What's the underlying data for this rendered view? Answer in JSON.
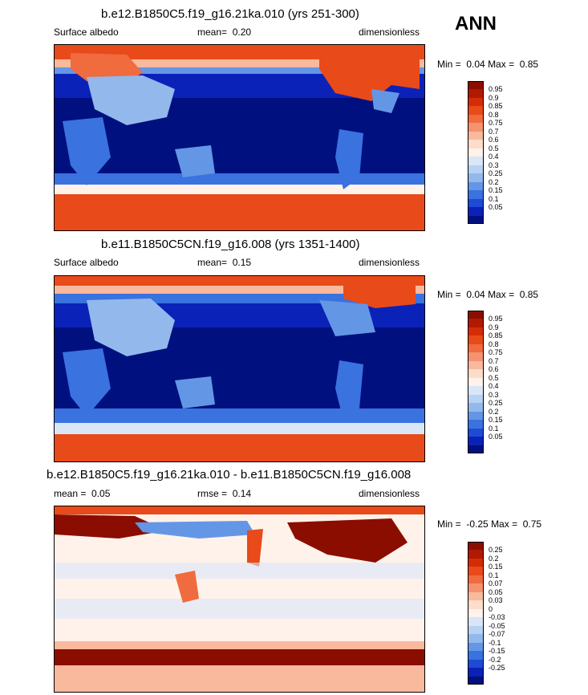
{
  "season": "ANN",
  "chart_data": [
    {
      "type": "heatmap",
      "title": "b.e12.B1850C5.f19_g16.21ka.010 (yrs 251-300)",
      "variable": "Surface albedo",
      "mean_label": "mean=",
      "mean": "0.20",
      "units": "dimensionless",
      "min_label": "Min =",
      "min": "0.04",
      "max_label": "Max =",
      "max": "0.85",
      "levels": [
        "0.95",
        "0.9",
        "0.85",
        "0.8",
        "0.75",
        "0.7",
        "0.6",
        "0.5",
        "0.4",
        "0.3",
        "0.25",
        "0.2",
        "0.15",
        "0.1",
        "0.05"
      ],
      "colors": [
        "#8b0d00",
        "#b01a00",
        "#d42d05",
        "#e84a1a",
        "#f06b3d",
        "#f59270",
        "#f9b99d",
        "#fcdccb",
        "#fef2ea",
        "#d8e6f8",
        "#b8d2f2",
        "#93b8ec",
        "#6496e6",
        "#3a72e0",
        "#1e4ad6",
        "#0a22b8",
        "#01107f"
      ]
    },
    {
      "type": "heatmap",
      "title": "b.e11.B1850C5CN.f19_g16.008 (yrs 1351-1400)",
      "variable": "Surface albedo",
      "mean_label": "mean=",
      "mean": "0.15",
      "units": "dimensionless",
      "min_label": "Min =",
      "min": "0.04",
      "max_label": "Max =",
      "max": "0.85",
      "levels": [
        "0.95",
        "0.9",
        "0.85",
        "0.8",
        "0.75",
        "0.7",
        "0.6",
        "0.5",
        "0.4",
        "0.3",
        "0.25",
        "0.2",
        "0.15",
        "0.1",
        "0.05"
      ],
      "colors": [
        "#8b0d00",
        "#b01a00",
        "#d42d05",
        "#e84a1a",
        "#f06b3d",
        "#f59270",
        "#f9b99d",
        "#fcdccb",
        "#fef2ea",
        "#d8e6f8",
        "#b8d2f2",
        "#93b8ec",
        "#6496e6",
        "#3a72e0",
        "#1e4ad6",
        "#0a22b8",
        "#01107f"
      ]
    },
    {
      "type": "heatmap",
      "title": "b.e12.B1850C5.f19_g16.21ka.010 - b.e11.B1850C5CN.f19_g16.008",
      "mean_label": "mean =",
      "mean": "0.05",
      "rmse_label": "rmse =",
      "rmse": "0.14",
      "units": "dimensionless",
      "min_label": "Min =",
      "min": "-0.25",
      "max_label": "Max =",
      "max": "0.75",
      "levels": [
        "0.25",
        "0.2",
        "0.15",
        "0.1",
        "0.07",
        "0.05",
        "0.03",
        "0",
        "-0.03",
        "-0.05",
        "-0.07",
        "-0.1",
        "-0.15",
        "-0.2",
        "-0.25"
      ],
      "colors": [
        "#8b0d00",
        "#b01a00",
        "#d42d05",
        "#e84a1a",
        "#f06b3d",
        "#f59270",
        "#f9b99d",
        "#fcdccb",
        "#fef2ea",
        "#d8e6f8",
        "#b8d2f2",
        "#93b8ec",
        "#6496e6",
        "#3a72e0",
        "#1e4ad6",
        "#0a22b8",
        "#01107f"
      ]
    }
  ]
}
